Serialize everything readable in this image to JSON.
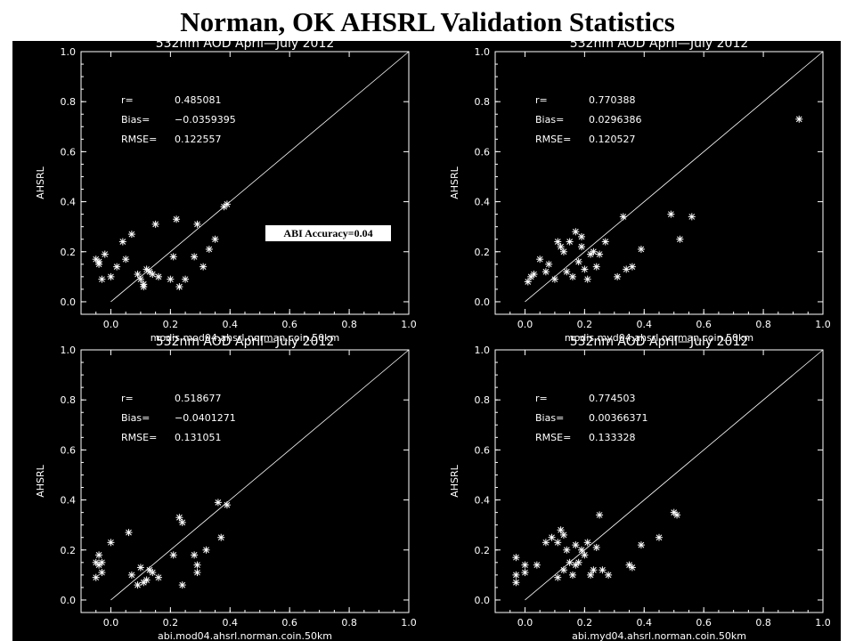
{
  "page": {
    "title": "Norman, OK AHSRL Validation Statistics"
  },
  "annotation": {
    "accuracy": "ABI Accuracy=0.04"
  },
  "chart_data": [
    {
      "type": "scatter",
      "title": "532nm AOD April—July 2012",
      "xlabel": "modis.mod04.ahsrl.norman.coin.50km",
      "ylabel": "AHSRL",
      "xlim": [
        -0.1,
        1.0
      ],
      "ylim": [
        -0.05,
        1.0
      ],
      "xticks": [
        "0.0",
        "0.2",
        "0.4",
        "0.6",
        "0.8",
        "1.0"
      ],
      "yticks": [
        "0.0",
        "0.2",
        "0.4",
        "0.6",
        "0.8",
        "1.0"
      ],
      "reference_line": "1:1",
      "stats": [
        {
          "label": "r=",
          "value": "0.485081"
        },
        {
          "label": "Bias=",
          "value": "−0.0359395"
        },
        {
          "label": "RMSE=",
          "value": "0.122557"
        }
      ],
      "x": [
        -0.05,
        -0.04,
        -0.04,
        -0.03,
        -0.02,
        0.0,
        0.02,
        0.04,
        0.05,
        0.07,
        0.09,
        0.1,
        0.11,
        0.11,
        0.12,
        0.13,
        0.14,
        0.15,
        0.16,
        0.2,
        0.21,
        0.22,
        0.23,
        0.25,
        0.28,
        0.29,
        0.31,
        0.33,
        0.35,
        0.38,
        0.39
      ],
      "y": [
        0.17,
        0.16,
        0.15,
        0.09,
        0.19,
        0.1,
        0.14,
        0.24,
        0.17,
        0.27,
        0.11,
        0.09,
        0.06,
        0.07,
        0.13,
        0.12,
        0.11,
        0.31,
        0.1,
        0.09,
        0.18,
        0.33,
        0.06,
        0.09,
        0.18,
        0.31,
        0.14,
        0.21,
        0.25,
        0.38,
        0.39
      ]
    },
    {
      "type": "scatter",
      "title": "532nm AOD April—July 2012",
      "xlabel": "modis.myd04.ahsrl.norman.coin.50km",
      "ylabel": "AHSRL",
      "xlim": [
        -0.1,
        1.0
      ],
      "ylim": [
        -0.05,
        1.0
      ],
      "xticks": [
        "0.0",
        "0.2",
        "0.4",
        "0.6",
        "0.8",
        "1.0"
      ],
      "yticks": [
        "0.0",
        "0.2",
        "0.4",
        "0.6",
        "0.8",
        "1.0"
      ],
      "reference_line": "1:1",
      "stats": [
        {
          "label": "r=",
          "value": "0.770388"
        },
        {
          "label": "Bias=",
          "value": "0.0296386"
        },
        {
          "label": "RMSE=",
          "value": "0.120527"
        }
      ],
      "x": [
        0.01,
        0.02,
        0.03,
        0.05,
        0.07,
        0.08,
        0.1,
        0.11,
        0.12,
        0.13,
        0.14,
        0.15,
        0.16,
        0.17,
        0.18,
        0.19,
        0.19,
        0.2,
        0.21,
        0.22,
        0.23,
        0.24,
        0.25,
        0.27,
        0.31,
        0.33,
        0.34,
        0.36,
        0.39,
        0.49,
        0.52,
        0.56,
        0.92
      ],
      "y": [
        0.08,
        0.1,
        0.11,
        0.17,
        0.12,
        0.15,
        0.09,
        0.24,
        0.22,
        0.2,
        0.12,
        0.24,
        0.1,
        0.28,
        0.16,
        0.26,
        0.22,
        0.13,
        0.09,
        0.19,
        0.2,
        0.14,
        0.19,
        0.24,
        0.1,
        0.34,
        0.13,
        0.14,
        0.21,
        0.35,
        0.25,
        0.34,
        0.73
      ]
    },
    {
      "type": "scatter",
      "title": "532nm AOD April—July 2012",
      "xlabel": "abi.mod04.ahsrl.norman.coin.50km",
      "ylabel": "AHSRL",
      "xlim": [
        -0.1,
        1.0
      ],
      "ylim": [
        -0.05,
        1.0
      ],
      "xticks": [
        "0.0",
        "0.2",
        "0.4",
        "0.6",
        "0.8",
        "1.0"
      ],
      "yticks": [
        "0.0",
        "0.2",
        "0.4",
        "0.6",
        "0.8",
        "1.0"
      ],
      "reference_line": "1:1",
      "stats": [
        {
          "label": "r=",
          "value": "0.518677"
        },
        {
          "label": "Bias=",
          "value": "−0.0401271"
        },
        {
          "label": "RMSE=",
          "value": "0.131051"
        }
      ],
      "x": [
        -0.05,
        -0.05,
        -0.04,
        -0.04,
        -0.03,
        -0.03,
        0.0,
        0.06,
        0.07,
        0.09,
        0.1,
        0.11,
        0.12,
        0.13,
        0.14,
        0.16,
        0.21,
        0.23,
        0.24,
        0.24,
        0.28,
        0.29,
        0.29,
        0.32,
        0.36,
        0.37,
        0.39
      ],
      "y": [
        0.09,
        0.15,
        0.18,
        0.14,
        0.11,
        0.15,
        0.23,
        0.27,
        0.1,
        0.06,
        0.13,
        0.07,
        0.08,
        0.12,
        0.11,
        0.09,
        0.18,
        0.33,
        0.31,
        0.06,
        0.18,
        0.14,
        0.11,
        0.2,
        0.39,
        0.25,
        0.38
      ]
    },
    {
      "type": "scatter",
      "title": "532nm AOD April—July 2012",
      "xlabel": "abi.myd04.ahsrl.norman.coin.50km",
      "ylabel": "AHSRL",
      "xlim": [
        -0.1,
        1.0
      ],
      "ylim": [
        -0.05,
        1.0
      ],
      "xticks": [
        "0.0",
        "0.2",
        "0.4",
        "0.6",
        "0.8",
        "1.0"
      ],
      "yticks": [
        "0.0",
        "0.2",
        "0.4",
        "0.6",
        "0.8",
        "1.0"
      ],
      "reference_line": "1:1",
      "stats": [
        {
          "label": "r=",
          "value": "0.774503"
        },
        {
          "label": "Bias=",
          "value": "0.00366371"
        },
        {
          "label": "RMSE=",
          "value": "0.133328"
        }
      ],
      "x": [
        -0.03,
        -0.03,
        -0.03,
        0.0,
        0.0,
        0.04,
        0.07,
        0.09,
        0.11,
        0.11,
        0.12,
        0.13,
        0.13,
        0.14,
        0.15,
        0.16,
        0.17,
        0.17,
        0.18,
        0.19,
        0.2,
        0.21,
        0.22,
        0.23,
        0.24,
        0.25,
        0.26,
        0.28,
        0.35,
        0.36,
        0.39,
        0.45,
        0.5,
        0.51
      ],
      "y": [
        0.07,
        0.1,
        0.17,
        0.11,
        0.14,
        0.14,
        0.23,
        0.25,
        0.09,
        0.23,
        0.28,
        0.26,
        0.12,
        0.2,
        0.15,
        0.1,
        0.22,
        0.14,
        0.15,
        0.2,
        0.18,
        0.23,
        0.1,
        0.12,
        0.21,
        0.34,
        0.12,
        0.1,
        0.14,
        0.13,
        0.22,
        0.25,
        0.35,
        0.34
      ]
    }
  ]
}
